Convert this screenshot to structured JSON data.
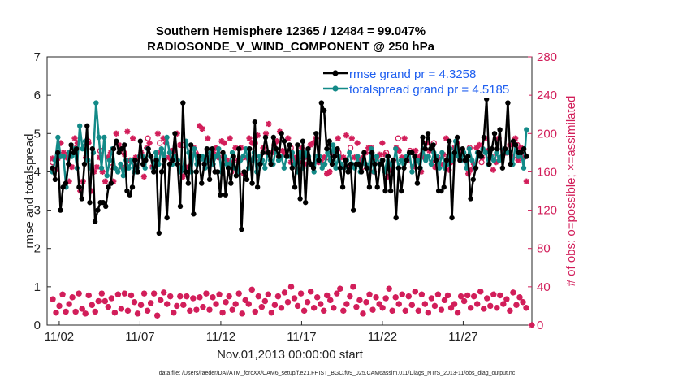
{
  "chart_data": {
    "type": "line",
    "title": [
      "Southern Hemisphere 12365 / 12484 = 99.047%",
      "RADIOSONDE_V_WIND_COMPONENT @ 250 hPa"
    ],
    "xlabel": "Nov.01,2013 00:00:00 start",
    "ylabel": "rmse and totalspread",
    "ylabel_right": "# of obs: o=possible; ×=assimilated",
    "footer": "data file: /Users/raeder/DAI/ATM_forcXX/CAM6_setup/f.e21.FHIST_BGC.f09_025.CAM6assim.011/Diags_NTrS_2013-11/obs_diag_output.nc",
    "x_ticks": [
      1.5,
      6.5,
      11.5,
      16.5,
      21.5,
      26.5
    ],
    "x_tick_labels": [
      "11/02",
      "11/07",
      "11/12",
      "11/17",
      "11/22",
      "11/27"
    ],
    "xlim": [
      0.75,
      30.75
    ],
    "ylim": [
      0,
      7
    ],
    "y_ticks": [
      0,
      1,
      2,
      3,
      4,
      5,
      6,
      7
    ],
    "ylim_right": [
      0,
      280
    ],
    "y_ticks_right": [
      0,
      40,
      80,
      120,
      160,
      200,
      240,
      280
    ],
    "legend_position": "top-right",
    "colors": {
      "rmse": "#000000",
      "spread": "#138a88",
      "obs": "#d21e5a"
    },
    "series": [
      {
        "name": "rmse grand pr = 4.3258",
        "color": "#000000",
        "values": [
          4.1,
          3.8,
          4.5,
          3.0,
          3.6,
          3.7,
          4.2,
          4.7,
          4.5,
          4.6,
          3.6,
          3.3,
          4.2,
          5.2,
          3.2,
          4.6,
          2.7,
          3.0,
          3.2,
          3.2,
          3.1,
          3.6,
          3.7,
          4.6,
          4.8,
          4.5,
          4.6,
          4.7,
          3.5,
          3.4,
          3.6,
          4.3,
          4.0,
          4.8,
          4.2,
          4.3,
          4.6,
          4.4,
          4.0,
          4.3,
          2.4,
          4.0,
          4.3,
          2.8,
          4.2,
          4.3,
          5.0,
          4.2,
          3.1,
          5.8,
          4.0,
          3.7,
          4.7,
          2.9,
          4.0,
          4.4,
          3.7,
          4.2,
          4.6,
          3.8,
          4.6,
          4.0,
          4.0,
          3.4,
          4.5,
          3.4,
          4.1,
          3.7,
          4.4,
          3.9,
          4.6,
          2.5,
          4.0,
          3.8,
          4.6,
          3.7,
          5.3,
          3.6,
          4.2,
          4.5,
          4.9,
          4.5,
          4.2,
          4.9,
          4.6,
          4.4,
          5.0,
          4.8,
          4.4,
          4.7,
          4.1,
          3.6,
          4.7,
          3.3,
          4.8,
          3.2,
          4.6,
          4.2,
          4.1,
          5.0,
          4.3,
          5.8,
          5.6,
          4.6,
          4.8,
          4.2,
          4.4,
          4.6,
          4.1,
          3.6,
          4.3,
          4.0,
          4.2,
          3.0,
          4.2,
          4.2,
          4.0,
          4.5,
          4.1,
          3.6,
          4.5,
          4.2,
          3.6,
          4.2,
          4.3,
          3.5,
          4.4,
          3.5,
          4.3,
          2.8,
          4.1,
          3.5,
          4.1,
          4.3,
          4.5,
          4.5,
          4.4,
          3.7,
          4.1,
          4.9,
          4.6,
          5.0,
          4.6,
          4.7,
          4.3,
          3.5,
          3.5,
          3.6,
          4.3,
          4.8,
          2.8,
          4.5,
          4.9,
          4.3,
          4.6,
          4.3,
          4.4,
          3.3,
          3.8,
          4.1,
          4.5,
          4.4,
          4.9,
          5.9,
          4.2,
          4.6,
          5.0,
          4.6,
          5.1,
          4.1,
          4.6,
          5.8,
          4.2,
          4.8,
          4.7,
          4.5,
          4.5,
          4.6,
          4.4
        ]
      },
      {
        "name": "totalspread grand pr = 4.5185",
        "color": "#138a88",
        "values": [
          4.0,
          4.3,
          4.9,
          4.4,
          4.4,
          3.6,
          4.5,
          4.4,
          4.6,
          4.1,
          5.2,
          4.6,
          4.8,
          4.3,
          4.1,
          4.5,
          5.8,
          4.9,
          4.1,
          4.9,
          3.9,
          4.3,
          4.6,
          4.1,
          4.0,
          4.2,
          3.9,
          4.3,
          4.1,
          4.3,
          4.0,
          4.1,
          4.4,
          4.4,
          4.1,
          4.6,
          4.4,
          4.1,
          4.5,
          4.2,
          4.6,
          4.4,
          4.9,
          4.5,
          4.2,
          4.4,
          4.3,
          4.0,
          4.1,
          4.8,
          4.5,
          4.0,
          4.6,
          4.2,
          4.3,
          4.4,
          4.1,
          4.3,
          4.5,
          4.2,
          4.4,
          4.6,
          4.0,
          4.4,
          4.2,
          4.2,
          4.5,
          4.1,
          4.0,
          4.3,
          4.4,
          4.6,
          4.1,
          4.3,
          4.5,
          4.0,
          4.4,
          4.3,
          4.1,
          4.5,
          4.3,
          4.2,
          4.6,
          4.3,
          4.4,
          4.1,
          4.4,
          4.4,
          4.5,
          4.2,
          4.0,
          4.5,
          4.1,
          4.5,
          4.4,
          4.2,
          4.0,
          4.4,
          4.4,
          4.1,
          4.2,
          4.5,
          4.3,
          4.7,
          4.1,
          4.4,
          4.2,
          4.1,
          4.3,
          4.5,
          4.2,
          4.1,
          4.4,
          4.0,
          4.3,
          4.2,
          4.1,
          4.6,
          4.0,
          4.4,
          4.2,
          4.3,
          4.0,
          4.4,
          4.2,
          4.1,
          4.6,
          4.1,
          4.3,
          4.2,
          4.4,
          4.5,
          4.0,
          4.4,
          4.3,
          4.1,
          4.6,
          4.3,
          4.4,
          4.2,
          4.5,
          4.4,
          4.1,
          4.5,
          4.1,
          4.2,
          4.6,
          4.3,
          4.8,
          4.4,
          4.3,
          4.5,
          4.1,
          4.6,
          4.3,
          4.1,
          4.5,
          4.4,
          4.6,
          4.5,
          4.2,
          4.4,
          4.3,
          4.5,
          4.3,
          4.4,
          4.6,
          4.5,
          4.5,
          4.2,
          4.7,
          4.4,
          4.5,
          4.1,
          5.1
        ]
      }
    ],
    "obs_assimilated": [
      174,
      162,
      174,
      190,
      180,
      175,
      150,
      165,
      195,
      190,
      140,
      150,
      175,
      190,
      140,
      160,
      165,
      175,
      160,
      150,
      175,
      180,
      150,
      200,
      188,
      165,
      178,
      202,
      172,
      195,
      175,
      175,
      180,
      155,
      185,
      190,
      165,
      170,
      200,
      180,
      195,
      190,
      175,
      182,
      182,
      200,
      188,
      155,
      160,
      165,
      175,
      185,
      178,
      208,
      205,
      172,
      195,
      172,
      180,
      185,
      175,
      192,
      190,
      172,
      195,
      170,
      185,
      172,
      185,
      158,
      175,
      195,
      190,
      175,
      198,
      172,
      185,
      200,
      210,
      180,
      188,
      192,
      202,
      182,
      178,
      195,
      170,
      175,
      172,
      180,
      185,
      168,
      175,
      188,
      190,
      195,
      170,
      170,
      175,
      158,
      160,
      178,
      182,
      195,
      175,
      175,
      198,
      165,
      195,
      175,
      190,
      172,
      175,
      180,
      185,
      185,
      160,
      175,
      178,
      190,
      178,
      155,
      162,
      172,
      185,
      182,
      175,
      195,
      172,
      180,
      165,
      182,
      175,
      160,
      175,
      190,
      182,
      170,
      165,
      175,
      168,
      178,
      195,
      162,
      170,
      185,
      190,
      175,
      180,
      172,
      158,
      162,
      168,
      185,
      188,
      175,
      195,
      182,
      175,
      162,
      170,
      195,
      175,
      182,
      180,
      188,
      175,
      195,
      172,
      185,
      175,
      150
    ],
    "obs_possible": [
      170,
      178,
      185,
      192,
      182,
      165,
      180,
      170,
      195,
      190,
      172,
      188,
      180,
      182,
      178,
      160,
      175,
      190,
      180,
      176,
      185,
      170,
      190,
      175,
      180,
      185,
      165,
      170,
      180,
      195,
      182,
      178,
      190,
      172,
      180,
      185,
      170,
      175,
      180,
      188
    ],
    "obs_low_assimilated": [
      27,
      13,
      20,
      32,
      14,
      22,
      29,
      14,
      33,
      17,
      12,
      31,
      21,
      14,
      25,
      33,
      25,
      19,
      28,
      13,
      32,
      17,
      33,
      15,
      31,
      24,
      12,
      21,
      33,
      15,
      23,
      33,
      10,
      26,
      34,
      22,
      30,
      13,
      20,
      30,
      21,
      30,
      15,
      28,
      16,
      29,
      19,
      33,
      16,
      29,
      22,
      32,
      13,
      24,
      30,
      16,
      22,
      33,
      12,
      26,
      22,
      37,
      14,
      30,
      19,
      25,
      32,
      13,
      21,
      30,
      18,
      34,
      24,
      40,
      28,
      20,
      33,
      15,
      24,
      35,
      18,
      29,
      22,
      15,
      31,
      26,
      18,
      33,
      38,
      15,
      22,
      30,
      40,
      19,
      26,
      12,
      24,
      32,
      16,
      29,
      22,
      18,
      28,
      38,
      15,
      29,
      22,
      32,
      15,
      30,
      21,
      35,
      15,
      32,
      22,
      13,
      28,
      20,
      32,
      16,
      26,
      31,
      18,
      22,
      13,
      30,
      25,
      31,
      18,
      30,
      22,
      35,
      17,
      28,
      20,
      32,
      18,
      31,
      22,
      27,
      15,
      34,
      21,
      29,
      24,
      18
    ],
    "obs_low_possible": [
      27,
      13,
      20,
      32,
      14,
      22,
      29,
      14,
      33,
      17,
      12,
      31,
      21,
      14,
      25,
      33,
      25,
      19,
      28,
      13,
      32,
      17,
      33,
      15,
      31,
      24,
      12,
      21,
      33,
      15,
      23,
      33,
      10,
      26,
      34,
      22,
      30,
      13,
      20,
      30,
      21,
      30,
      15,
      28,
      16,
      29,
      19,
      33,
      16,
      29,
      22,
      32,
      13,
      24,
      30,
      16,
      22,
      33,
      12,
      26,
      22,
      37,
      14,
      30,
      19,
      25,
      32,
      13,
      21,
      30,
      18,
      34,
      24,
      40,
      28,
      20,
      33,
      15,
      24,
      35,
      18,
      29,
      22,
      15,
      31,
      26,
      18,
      33,
      38,
      15,
      22,
      30,
      40,
      19,
      26,
      12,
      24,
      32,
      16,
      29,
      22,
      18,
      28,
      38,
      15,
      29,
      22,
      32,
      15,
      30,
      21,
      35,
      15,
      32,
      22,
      13,
      28,
      20,
      32,
      16,
      26,
      31,
      18,
      22,
      13,
      30,
      25,
      31,
      18,
      30,
      22,
      35,
      17,
      28,
      20,
      32,
      18,
      31,
      22,
      27,
      15,
      34,
      21,
      29,
      24,
      18
    ]
  }
}
